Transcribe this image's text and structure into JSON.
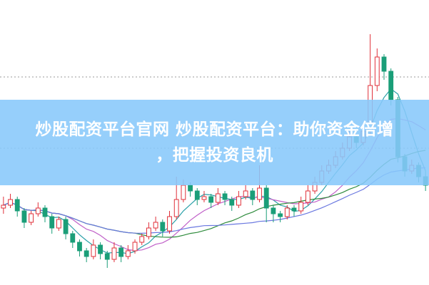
{
  "headline": {
    "line1": "炒股配资平台官网 炒股配资平台：助你资金倍增",
    "line2": "，把握投资良机"
  },
  "chart_data": {
    "type": "candlestick",
    "title": "",
    "xlabel": "",
    "ylabel": "",
    "grid": "two dotted horizontal lines",
    "legend": "none",
    "colors": {
      "up": "#e0303a",
      "down": "#1a9e78",
      "ma5": "#2aa0a8",
      "ma10": "#c060c8",
      "ma20": "#2e8b3c",
      "ma30": "#6a78e0",
      "grid": "#999999"
    },
    "ohlc": [
      [
        27,
        31,
        25,
        28
      ],
      [
        28,
        32,
        27,
        30
      ],
      [
        30,
        31,
        24,
        26
      ],
      [
        26,
        27,
        20,
        22
      ],
      [
        22,
        26,
        21,
        25
      ],
      [
        25,
        29,
        24,
        27
      ],
      [
        27,
        28,
        22,
        24
      ],
      [
        24,
        25,
        18,
        20
      ],
      [
        20,
        24,
        19,
        23
      ],
      [
        23,
        24,
        16,
        18
      ],
      [
        18,
        19,
        13,
        15
      ],
      [
        15,
        16,
        10,
        12
      ],
      [
        12,
        13,
        8,
        10
      ],
      [
        10,
        16,
        9,
        14
      ],
      [
        14,
        15,
        9,
        11
      ],
      [
        11,
        12,
        6,
        9
      ],
      [
        9,
        15,
        8,
        13
      ],
      [
        13,
        14,
        8,
        10
      ],
      [
        10,
        14,
        9,
        12
      ],
      [
        12,
        16,
        11,
        15
      ],
      [
        15,
        18,
        14,
        17
      ],
      [
        17,
        22,
        16,
        20
      ],
      [
        20,
        24,
        19,
        22
      ],
      [
        22,
        23,
        17,
        19
      ],
      [
        19,
        26,
        18,
        24
      ],
      [
        24,
        38,
        23,
        30
      ],
      [
        30,
        37,
        29,
        35
      ],
      [
        35,
        36,
        31,
        33
      ],
      [
        33,
        34,
        28,
        30
      ],
      [
        30,
        33,
        29,
        31
      ],
      [
        31,
        32,
        27,
        29
      ],
      [
        29,
        34,
        28,
        32
      ],
      [
        32,
        33,
        28,
        30
      ],
      [
        30,
        31,
        26,
        28
      ],
      [
        28,
        33,
        27,
        31
      ],
      [
        31,
        35,
        30,
        33
      ],
      [
        33,
        34,
        28,
        30
      ],
      [
        30,
        42,
        29,
        34
      ],
      [
        34,
        35,
        22,
        27
      ],
      [
        27,
        28,
        22,
        25
      ],
      [
        25,
        26,
        22,
        24
      ],
      [
        24,
        28,
        23,
        27
      ],
      [
        27,
        28,
        24,
        26
      ],
      [
        26,
        31,
        25,
        29
      ],
      [
        29,
        35,
        28,
        33
      ],
      [
        33,
        38,
        32,
        36
      ],
      [
        36,
        42,
        35,
        40
      ],
      [
        40,
        44,
        39,
        42
      ],
      [
        42,
        47,
        41,
        45
      ],
      [
        45,
        50,
        44,
        48
      ],
      [
        48,
        54,
        47,
        52
      ],
      [
        52,
        53,
        48,
        50
      ],
      [
        50,
        56,
        49,
        54
      ],
      [
        54,
        88,
        53,
        70
      ],
      [
        70,
        83,
        68,
        80
      ],
      [
        80,
        81,
        72,
        75
      ],
      [
        75,
        76,
        63,
        65
      ],
      [
        65,
        66,
        43,
        45
      ],
      [
        45,
        46,
        38,
        40
      ],
      [
        40,
        44,
        39,
        42
      ],
      [
        42,
        43,
        36,
        38
      ],
      [
        38,
        40,
        33,
        35
      ]
    ],
    "grid_levels": [
      73,
      48
    ]
  }
}
